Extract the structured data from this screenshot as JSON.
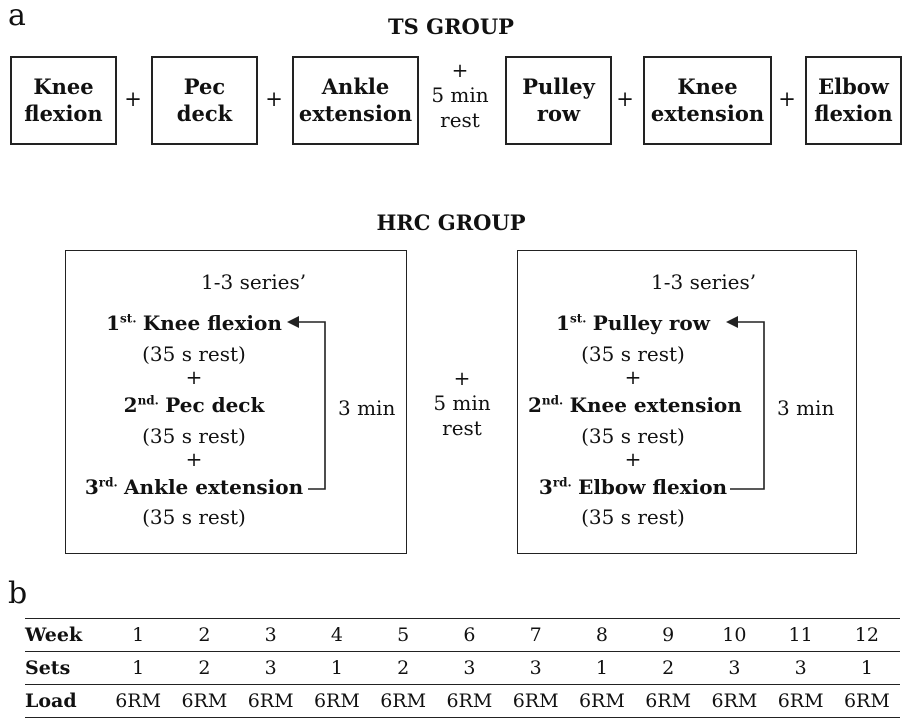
{
  "panel_a_letter": "a",
  "panel_b_letter": "b",
  "ts_group": {
    "title": "TS GROUP",
    "boxes": [
      {
        "line1": "Knee",
        "line2": "flexion"
      },
      {
        "line1": "Pec",
        "line2": "deck"
      },
      {
        "line1": "Ankle",
        "line2": "extension"
      },
      {
        "line1": "Pulley",
        "line2": "row"
      },
      {
        "line1": "Knee",
        "line2": "extension"
      },
      {
        "line1": "Elbow",
        "line2": "flexion"
      }
    ],
    "plus": "+",
    "mid_rest": {
      "plus": "+",
      "line1": "5 min",
      "line2": "rest"
    }
  },
  "hrc_group": {
    "title": "HRC GROUP",
    "left_box": {
      "series": "1-3 series’",
      "exercises": [
        {
          "ordinal": "1",
          "ordinal_sup": "st.",
          "name": "Knee flexion"
        },
        {
          "ordinal": "2",
          "ordinal_sup": "nd.",
          "name": "Pec deck"
        },
        {
          "ordinal": "3",
          "ordinal_sup": "rd.",
          "name": "Ankle extension"
        }
      ],
      "rest": "(35 s rest)",
      "plus": "+",
      "loop_label": "3 min"
    },
    "mid_rest": {
      "plus": "+",
      "line1": "5 min",
      "line2": "rest"
    },
    "right_box": {
      "series": "1-3 series’",
      "exercises": [
        {
          "ordinal": "1",
          "ordinal_sup": "st.",
          "name": "Pulley row"
        },
        {
          "ordinal": "2",
          "ordinal_sup": "nd.",
          "name": "Knee extension"
        },
        {
          "ordinal": "3",
          "ordinal_sup": "rd.",
          "name": "Elbow flexion"
        }
      ],
      "rest": "(35 s rest)",
      "plus": "+",
      "loop_label": "3 min"
    }
  },
  "schedule_table": {
    "row_headers": [
      "Week",
      "Sets",
      "Load"
    ],
    "week": [
      "1",
      "2",
      "3",
      "4",
      "5",
      "6",
      "7",
      "8",
      "9",
      "10",
      "11",
      "12"
    ],
    "sets": [
      "1",
      "2",
      "3",
      "1",
      "2",
      "3",
      "3",
      "1",
      "2",
      "3",
      "3",
      "1"
    ],
    "load": [
      "6RM",
      "6RM",
      "6RM",
      "6RM",
      "6RM",
      "6RM",
      "6RM",
      "6RM",
      "6RM",
      "6RM",
      "6RM",
      "6RM"
    ]
  }
}
